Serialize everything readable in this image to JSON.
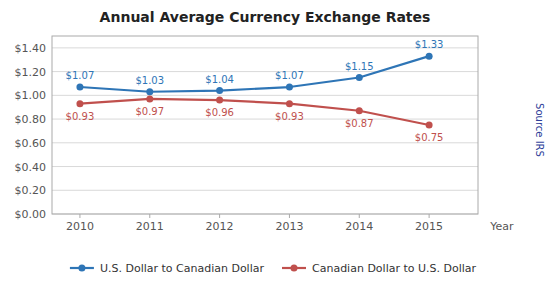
{
  "chart_data": {
    "type": "line",
    "title": "Annual Average Currency Exchange Rates",
    "x_label": "Year",
    "annotations": [
      "Source IRS"
    ],
    "x": [
      2010,
      2011,
      2012,
      2013,
      2014,
      2015
    ],
    "xlim": [
      2009.6,
      2015.7
    ],
    "xticks": [
      2010,
      2011,
      2012,
      2013,
      2014,
      2015
    ],
    "ylim": [
      0.0,
      1.5
    ],
    "yticks": [
      {
        "value": 0.0,
        "label": "$0.00"
      },
      {
        "value": 0.2,
        "label": "$0.20"
      },
      {
        "value": 0.4,
        "label": "$0.40"
      },
      {
        "value": 0.6,
        "label": "$0.60"
      },
      {
        "value": 0.8,
        "label": "$0.80"
      },
      {
        "value": 1.0,
        "label": "$1.00"
      },
      {
        "value": 1.2,
        "label": "$1.20"
      },
      {
        "value": 1.4,
        "label": "$1.40"
      }
    ],
    "grid": true,
    "legend": "bottom",
    "data_labels": true,
    "marker": "circle",
    "series": [
      {
        "name": "U.S. Dollar to Canadian Dollar",
        "color": "#2E75B6",
        "values": [
          1.07,
          1.03,
          1.04,
          1.07,
          1.15,
          1.33
        ],
        "value_labels": [
          "$1.07",
          "$1.03",
          "$1.04",
          "$1.07",
          "$1.15",
          "$1.33"
        ]
      },
      {
        "name": "Canadian Dollar to U.S. Dollar",
        "color": "#C0504D",
        "values": [
          0.93,
          0.97,
          0.96,
          0.93,
          0.87,
          0.75
        ],
        "value_labels": [
          "$0.93",
          "$0.97",
          "$0.96",
          "$0.93",
          "$0.87",
          "$0.75"
        ]
      }
    ]
  }
}
